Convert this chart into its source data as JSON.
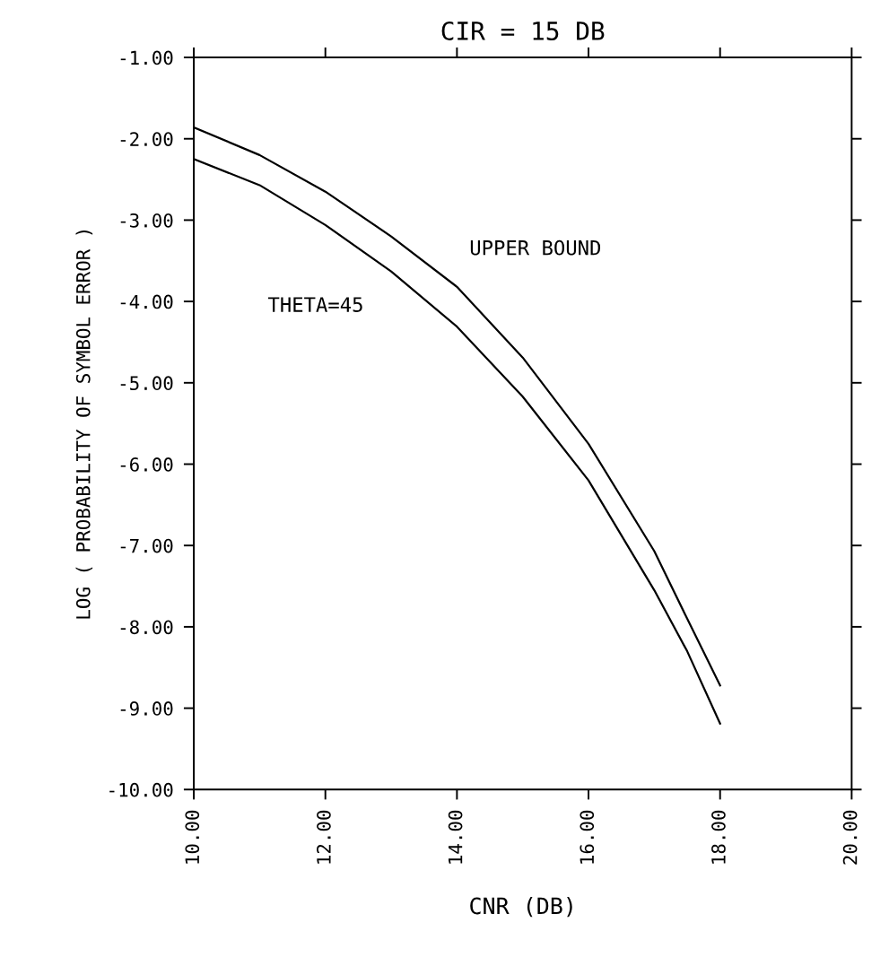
{
  "chart_data": {
    "type": "line",
    "title": "CIR = 15 DB",
    "xlabel": "CNR (DB)",
    "ylabel": "LOG ( PROBABILITY OF SYMBOL ERROR )",
    "series": [
      {
        "name": "UPPER BOUND",
        "color": "#000000",
        "x": [
          10,
          11,
          12,
          13,
          14,
          15,
          16,
          17,
          17.5,
          18
        ],
        "values": [
          -1.86,
          -2.2,
          -2.65,
          -3.2,
          -3.82,
          -4.69,
          -5.75,
          -7.07,
          -7.9,
          -8.72
        ]
      },
      {
        "name": "THETA=45",
        "color": "#000000",
        "x": [
          10,
          11,
          12,
          13,
          14,
          15,
          16,
          17,
          17.5,
          18
        ],
        "values": [
          -2.25,
          -2.57,
          -3.06,
          -3.63,
          -4.31,
          -5.17,
          -6.2,
          -7.55,
          -8.3,
          -9.19
        ]
      }
    ],
    "xlim": [
      10,
      20
    ],
    "ylim": [
      -10,
      -1
    ],
    "xticks": [
      {
        "value": 10,
        "label": "10.00"
      },
      {
        "value": 12,
        "label": "12.00"
      },
      {
        "value": 14,
        "label": "14.00"
      },
      {
        "value": 16,
        "label": "16.00"
      },
      {
        "value": 18,
        "label": "18.00"
      },
      {
        "value": 20,
        "label": "20.00"
      }
    ],
    "yticks": [
      {
        "value": -10,
        "label": "-10.00"
      },
      {
        "value": -9,
        "label": "-9.00"
      },
      {
        "value": -8,
        "label": "-8.00"
      },
      {
        "value": -7,
        "label": "-7.00"
      },
      {
        "value": -6,
        "label": "-6.00"
      },
      {
        "value": -5,
        "label": "-5.00"
      },
      {
        "value": -4,
        "label": "-4.00"
      },
      {
        "value": -3,
        "label": "-3.00"
      },
      {
        "value": -2,
        "label": "-2.00"
      },
      {
        "value": -1,
        "label": "-1.00"
      }
    ],
    "grid": false,
    "legend": false,
    "marker": "none",
    "line_style": "solid"
  }
}
